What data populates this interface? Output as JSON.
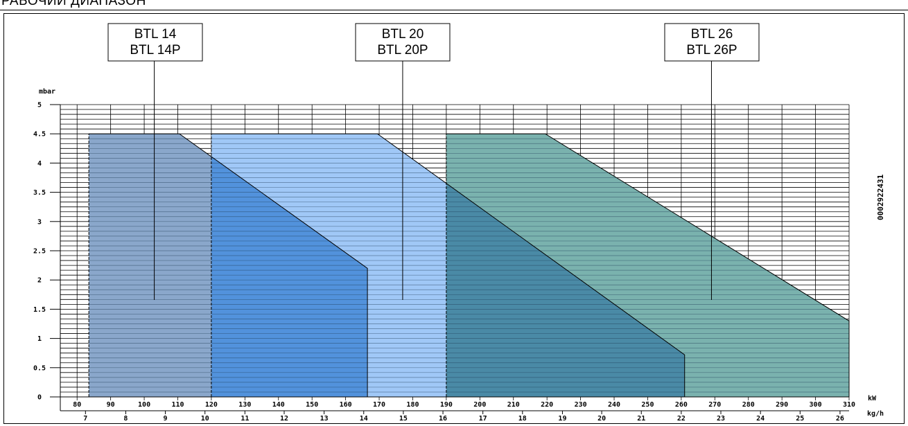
{
  "page": {
    "title": "РАБОЧИЙ ДИАПАЗОН"
  },
  "chart_data": {
    "type": "area",
    "title": "РАБОЧИЙ ДИАПАЗОН",
    "ylabel": "mbar",
    "xlabel": "kW",
    "x2label": "kg/h",
    "drawing_code": "0002922431",
    "xlim": [
      75,
      310
    ],
    "ylim": [
      0,
      5
    ],
    "x_ticks": [
      80,
      90,
      100,
      110,
      120,
      130,
      140,
      150,
      160,
      170,
      180,
      190,
      200,
      210,
      220,
      230,
      240,
      250,
      260,
      270,
      280,
      290,
      300,
      310
    ],
    "y_ticks": [
      {
        "value": 0,
        "label": "0"
      },
      {
        "value": 0.5,
        "label": "0.5"
      },
      {
        "value": 1,
        "label": "1"
      },
      {
        "value": 1.5,
        "label": "1.5"
      },
      {
        "value": 2,
        "label": "2"
      },
      {
        "value": 2.5,
        "label": "2.5"
      },
      {
        "value": 3,
        "label": "3"
      },
      {
        "value": 3.5,
        "label": "3.5"
      },
      {
        "value": 4,
        "label": "4"
      },
      {
        "value": 4.5,
        "label": "4.5"
      },
      {
        "value": 5,
        "label": "5"
      }
    ],
    "kgh_ticks": [
      {
        "label": "7",
        "kw": 82.5
      },
      {
        "label": "8",
        "kw": 94.5
      },
      {
        "label": "9",
        "kw": 106.3
      },
      {
        "label": "10",
        "kw": 118.1
      },
      {
        "label": "11",
        "kw": 130
      },
      {
        "label": "12",
        "kw": 141.7
      },
      {
        "label": "13",
        "kw": 153.6
      },
      {
        "label": "14",
        "kw": 165.4
      },
      {
        "label": "15",
        "kw": 177.2
      },
      {
        "label": "16",
        "kw": 189
      },
      {
        "label": "17",
        "kw": 200.9
      },
      {
        "label": "18",
        "kw": 212.7
      },
      {
        "label": "19",
        "kw": 224.6
      },
      {
        "label": "20",
        "kw": 236.3
      },
      {
        "label": "21",
        "kw": 248.1
      },
      {
        "label": "22",
        "kw": 260
      },
      {
        "label": "23",
        "kw": 271.8
      },
      {
        "label": "24",
        "kw": 283.6
      },
      {
        "label": "25",
        "kw": 295.4
      },
      {
        "label": "26",
        "kw": 307.3
      }
    ],
    "series": [
      {
        "name": "BTL 14 / BTL 14P",
        "label_lines": [
          "BTL 14",
          "BTL 14P"
        ],
        "color": "#8aa7cb",
        "points": [
          [
            83.5,
            0
          ],
          [
            83.5,
            4.5
          ],
          [
            110.5,
            4.5
          ],
          [
            166.5,
            2.2
          ],
          [
            166.5,
            0
          ]
        ],
        "pointer_x": 103
      },
      {
        "name": "BTL 20 / BTL 20P",
        "label_lines": [
          "BTL 20",
          "BTL 20P"
        ],
        "color": "#a0c8f7",
        "points": [
          [
            120,
            0
          ],
          [
            120,
            4.5
          ],
          [
            169.5,
            4.5
          ],
          [
            261,
            0.72
          ],
          [
            261,
            0
          ]
        ],
        "pointer_x": 177
      },
      {
        "name": "BTL 26 / BTL 26P",
        "label_lines": [
          "BTL 26",
          "BTL 26P"
        ],
        "color": "#7ab2ae",
        "points": [
          [
            190,
            0
          ],
          [
            190,
            4.5
          ],
          [
            219.5,
            4.5
          ],
          [
            310,
            1.3
          ],
          [
            310,
            0
          ]
        ],
        "pointer_x": 269
      }
    ],
    "overlaps": [
      {
        "between": [
          "BTL 14 / BTL 14P",
          "BTL 20 / BTL 20P"
        ],
        "color": "#5292dc"
      },
      {
        "between": [
          "BTL 20 / BTL 20P",
          "BTL 26 / BTL 26P"
        ],
        "color": "#4a8aa6"
      }
    ],
    "grid": true
  }
}
